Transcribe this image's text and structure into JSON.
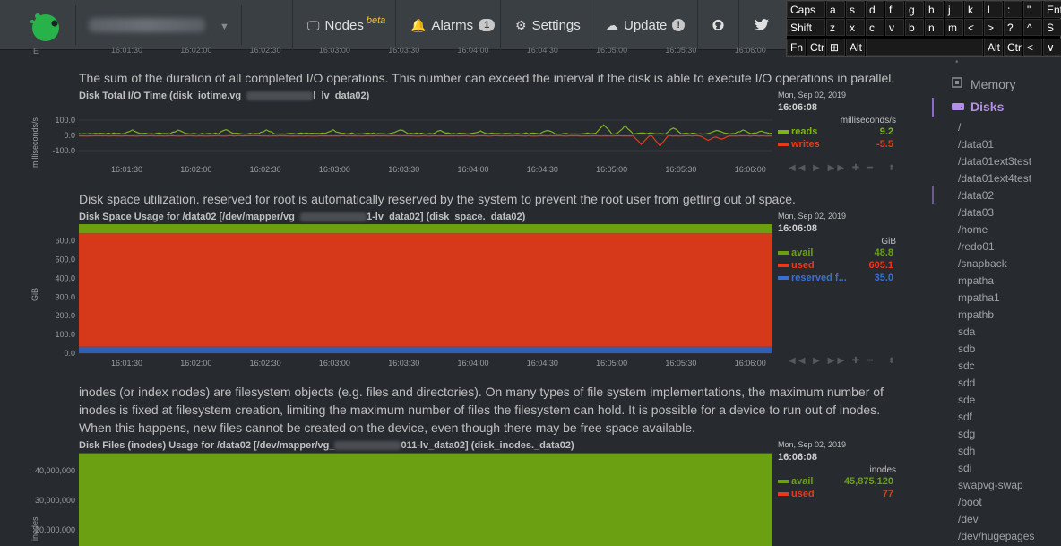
{
  "navbar": {
    "nodes_label": "Nodes",
    "nodes_beta": "beta",
    "alarms_label": "Alarms",
    "alarms_count": "1",
    "settings_label": "Settings",
    "update_label": "Update",
    "update_badge": "!"
  },
  "keyboard": {
    "row1": [
      "Caps",
      "a",
      "s",
      "d",
      "f",
      "g",
      "h",
      "j",
      "k",
      "l",
      ":",
      "\"",
      "Ent"
    ],
    "row2": [
      "Shift",
      "z",
      "x",
      "c",
      "v",
      "b",
      "n",
      "m",
      "<",
      ">",
      "?",
      "^",
      "S"
    ],
    "row3": [
      "Fn",
      "Ctr",
      "⊞",
      "Alt",
      "",
      "Alt",
      "Ctr",
      "<",
      "∨",
      ">"
    ]
  },
  "top_axis_ticks": [
    "16:01:30",
    "16:02:00",
    "16:02:30",
    "16:03:00",
    "16:03:30",
    "16:04:00",
    "16:04:30",
    "16:05:00",
    "16:05:30",
    "16:06:00"
  ],
  "charts": {
    "iotime": {
      "description": "The sum of the duration of all completed I/O operations. This number can exceed the interval if the disk is able to execute I/O operations in parallel.",
      "title_pre": "Disk Total I/O Time (disk_iotime.vg_",
      "title_post": "l_lv_data02)",
      "ylabel": "milliseconds/s",
      "yticks": [
        "100.0",
        "0.0",
        "-100.0"
      ],
      "legend": {
        "date": "Mon, Sep 02, 2019",
        "time": "16:06:08",
        "units": "milliseconds/s",
        "rows": [
          {
            "name": "reads",
            "value": "9.2",
            "color": "#7cb518"
          },
          {
            "name": "writes",
            "value": "-5.5",
            "color": "#e83a1a"
          }
        ]
      }
    },
    "space": {
      "description": "Disk space utilization. reserved for root is automatically reserved by the system to prevent the root user from getting out of space.",
      "title_pre": "Disk Space Usage for /data02 [/dev/mapper/vg_",
      "title_post": "1-lv_data02] (disk_space._data02)",
      "ylabel": "GiB",
      "yticks": [
        "600.0",
        "500.0",
        "400.0",
        "300.0",
        "200.0",
        "100.0",
        "0.0"
      ],
      "legend": {
        "date": "Mon, Sep 02, 2019",
        "time": "16:06:08",
        "units": "GiB",
        "rows": [
          {
            "name": "avail",
            "value": "48.8",
            "color": "#6aa012"
          },
          {
            "name": "used",
            "value": "605.1",
            "color": "#e83a1a"
          },
          {
            "name": "reserved f...",
            "value": "35.0",
            "color": "#3a6fd0"
          }
        ]
      }
    },
    "inodes": {
      "description": "inodes (or index nodes) are filesystem objects (e.g. files and directories). On many types of file system implementations, the maximum number of inodes is fixed at filesystem creation, limiting the maximum number of files the filesystem can hold. It is possible for a device to run out of inodes. When this happens, new files cannot be created on the device, even though there may be free space available.",
      "title_pre": "Disk Files (inodes) Usage for /data02 [/dev/mapper/vg_",
      "title_post": "011-lv_data02] (disk_inodes._data02)",
      "ylabel": "inodes",
      "yticks": [
        "40,000,000",
        "30,000,000",
        "20,000,000"
      ],
      "legend": {
        "date": "Mon, Sep 02, 2019",
        "time": "16:06:08",
        "units": "inodes",
        "rows": [
          {
            "name": "avail",
            "value": "45,875,120",
            "color": "#6aa012"
          },
          {
            "name": "used",
            "value": "77",
            "color": "#e83a1a"
          }
        ]
      }
    }
  },
  "chart_data": [
    {
      "type": "line",
      "title": "Disk Total I/O Time (disk_iotime.vg_…l_lv_data02)",
      "ylabel": "milliseconds/s",
      "x": [
        "16:01:30",
        "16:02:00",
        "16:02:30",
        "16:03:00",
        "16:03:30",
        "16:04:00",
        "16:04:30",
        "16:05:00",
        "16:05:30",
        "16:06:00"
      ],
      "ylim": [
        -150,
        150
      ],
      "series": [
        {
          "name": "reads",
          "values": [
            10,
            20,
            8,
            12,
            10,
            25,
            8,
            60,
            30,
            9.2
          ]
        },
        {
          "name": "writes",
          "values": [
            -3,
            -2,
            -4,
            -3,
            -2,
            -3,
            -2,
            -50,
            -35,
            -5.5
          ]
        }
      ]
    },
    {
      "type": "area",
      "title": "Disk Space Usage for /data02 [/dev/mapper/vg_…1-lv_data02] (disk_space._data02)",
      "ylabel": "GiB",
      "ylim": [
        0,
        689
      ],
      "series": [
        {
          "name": "avail",
          "values": [
            48.8
          ]
        },
        {
          "name": "used",
          "values": [
            605.1
          ]
        },
        {
          "name": "reserved f...",
          "values": [
            35.0
          ]
        }
      ]
    },
    {
      "type": "area",
      "title": "Disk Files (inodes) Usage for /data02 [/dev/mapper/vg_…011-lv_data02] (disk_inodes._data02)",
      "ylabel": "inodes",
      "series": [
        {
          "name": "avail",
          "values": [
            45875120
          ]
        },
        {
          "name": "used",
          "values": [
            77
          ]
        }
      ]
    }
  ],
  "sidebar": {
    "memory_label": "Memory",
    "disks_label": "Disks",
    "items": [
      "/",
      "/data01",
      "/data01ext3test",
      "/data01ext4test",
      "/data02",
      "/data03",
      "/home",
      "/redo01",
      "/snapback",
      "mpatha",
      "mpatha1",
      "mpathb",
      "sda",
      "sdb",
      "sdc",
      "sdd",
      "sde",
      "sdf",
      "sdg",
      "sdh",
      "sdi",
      "swapvg-swap",
      "/boot",
      "/dev",
      "/dev/hugepages"
    ]
  },
  "colors": {
    "reads": "#7cb518",
    "writes": "#e83a1a",
    "avail": "#6aa012",
    "used": "#d6381a",
    "reserved": "#2f5fb5",
    "accent": "#8a6bc6"
  }
}
